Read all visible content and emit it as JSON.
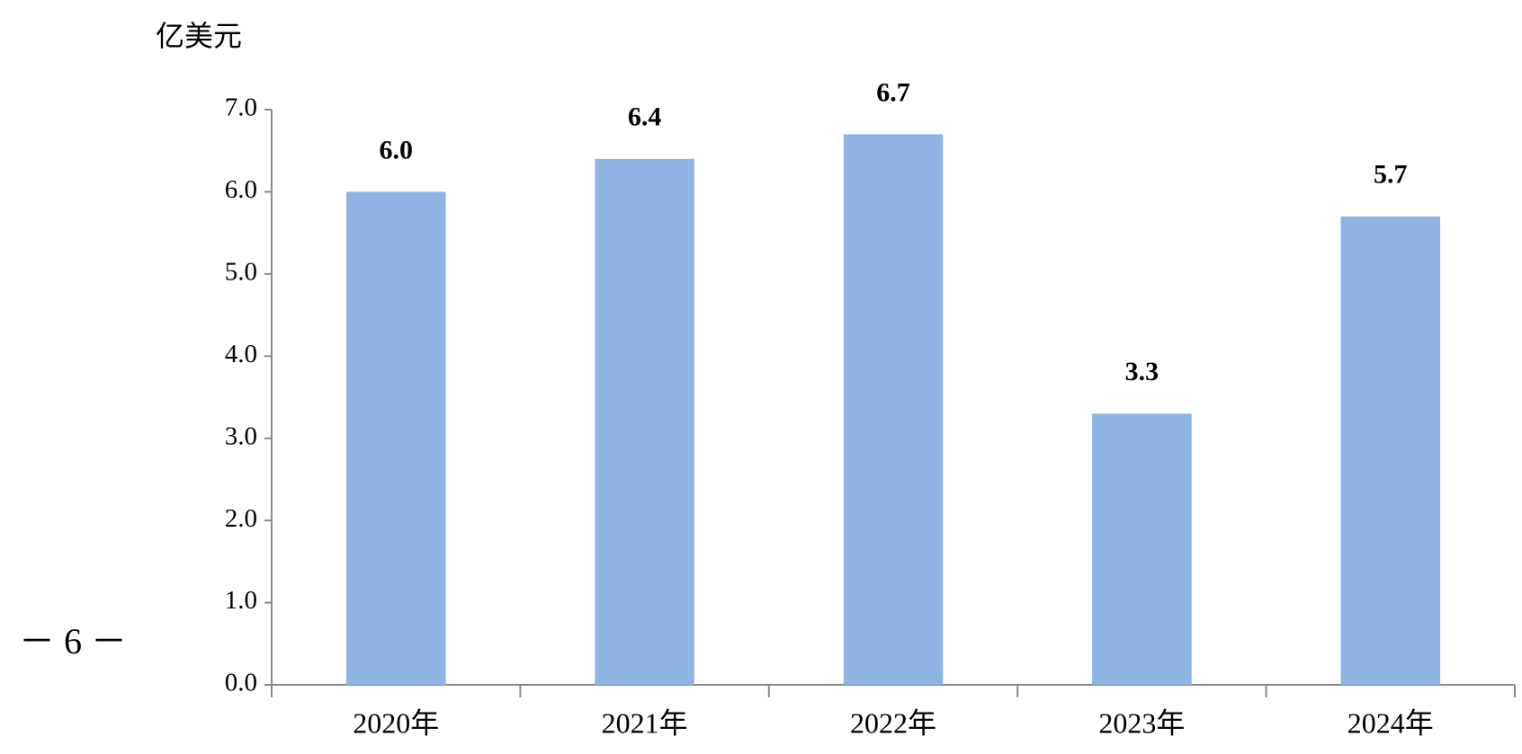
{
  "chart_data": {
    "type": "bar",
    "y_unit": "亿美元",
    "categories": [
      "2020年",
      "2021年",
      "2022年",
      "2023年",
      "2024年"
    ],
    "values": [
      6.0,
      6.4,
      6.7,
      3.3,
      5.7
    ],
    "value_labels": [
      "6.0",
      "6.4",
      "6.7",
      "3.3",
      "5.7"
    ],
    "color": "#8eb4e3",
    "ylim": [
      0,
      7
    ],
    "yticks": [
      {
        "value": 0,
        "label": "0.0"
      },
      {
        "value": 1,
        "label": "1.0"
      },
      {
        "value": 2,
        "label": "2.0"
      },
      {
        "value": 3,
        "label": "3.0"
      },
      {
        "value": 4,
        "label": "4.0"
      },
      {
        "value": 5,
        "label": "5.0"
      },
      {
        "value": 6,
        "label": "6.0"
      },
      {
        "value": 7,
        "label": "7.0"
      }
    ],
    "grid": false
  },
  "page_number": "－ 6 －"
}
